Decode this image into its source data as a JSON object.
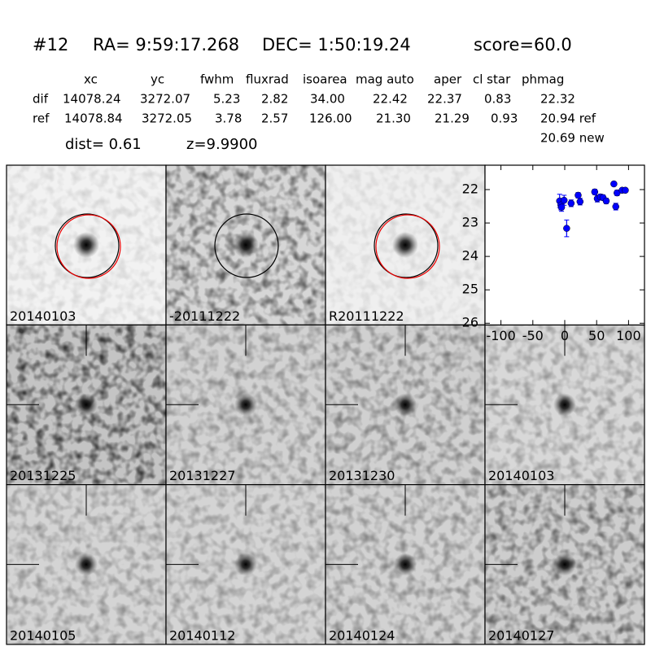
{
  "header": {
    "id": "#12",
    "ra": "RA= 9:59:17.268",
    "dec": "DEC= 1:50:19.24",
    "score": "score=60.0"
  },
  "table": {
    "columns": [
      "xc",
      "yc",
      "fwhm",
      "fluxrad",
      "isoarea",
      "mag auto",
      "aper",
      "cl star",
      "phmag"
    ],
    "rows": [
      [
        "dif",
        "14078.24",
        "3272.07",
        "5.23",
        "2.82",
        "34.00",
        "22.42",
        "22.37",
        "0.83",
        "22.32"
      ],
      [
        "ref",
        "14078.84",
        "3272.05",
        "3.78",
        "2.57",
        "126.00",
        "21.30",
        "21.29",
        "0.93",
        "20.94 ref"
      ]
    ],
    "extra": "20.69 new"
  },
  "dist": "dist=  0.61",
  "z": "z=9.9900",
  "panels": [
    {
      "label": "20140103"
    },
    {
      "label": "-20111222"
    },
    {
      "label": "R20111222"
    },
    {
      "label": "20131225"
    },
    {
      "label": "20131227"
    },
    {
      "label": "20131230"
    },
    {
      "label": "20140103",
      "color": "#ff0000"
    },
    {
      "label": "20140105"
    },
    {
      "label": "20140112"
    },
    {
      "label": "20140124"
    },
    {
      "label": "20140127"
    }
  ],
  "chart_data": {
    "type": "scatter",
    "x": [
      -8,
      -6,
      -5,
      -1,
      3,
      10,
      21,
      24,
      47,
      51,
      56,
      60,
      65,
      77,
      80,
      82,
      90,
      95
    ],
    "series": [
      {
        "color": "#0000ff",
        "values": [
          22.34,
          22.46,
          22.53,
          22.32,
          23.16,
          22.41,
          22.17,
          22.36,
          22.07,
          22.27,
          22.22,
          22.24,
          22.34,
          21.83,
          22.51,
          22.1,
          22.02,
          22.02
        ],
        "errors": [
          0.2,
          0.15,
          0.12,
          0.15,
          0.25,
          0.1,
          0.08,
          0.1,
          0.08,
          0.1,
          0.08,
          0.08,
          0.08,
          0.06,
          0.1,
          0.08,
          0.06,
          0.06
        ]
      }
    ],
    "xlim": [
      -125,
      125
    ],
    "ylim": [
      26.05,
      21.27
    ],
    "xticks": [
      -100,
      -50,
      0,
      50,
      100
    ],
    "yticks": [
      22,
      23,
      24,
      25,
      26
    ]
  }
}
